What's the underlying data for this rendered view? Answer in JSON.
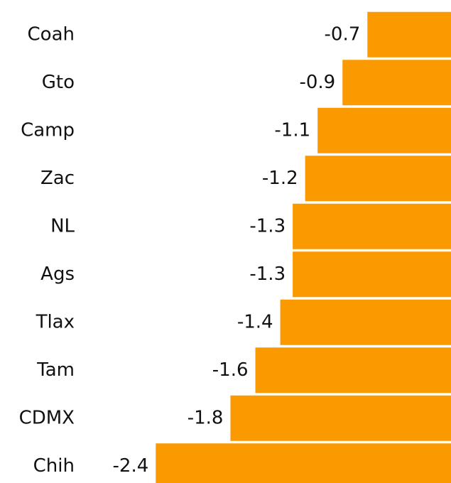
{
  "chart_data": {
    "type": "bar",
    "orientation": "horizontal",
    "categories": [
      "Coah",
      "Gto",
      "Camp",
      "Zac",
      "NL",
      "Ags",
      "Tlax",
      "Tam",
      "CDMX",
      "Chih"
    ],
    "values": [
      -0.7,
      -0.9,
      -1.1,
      -1.2,
      -1.3,
      -1.3,
      -1.4,
      -1.6,
      -1.8,
      -2.4
    ],
    "color": "#fa9a00"
  }
}
